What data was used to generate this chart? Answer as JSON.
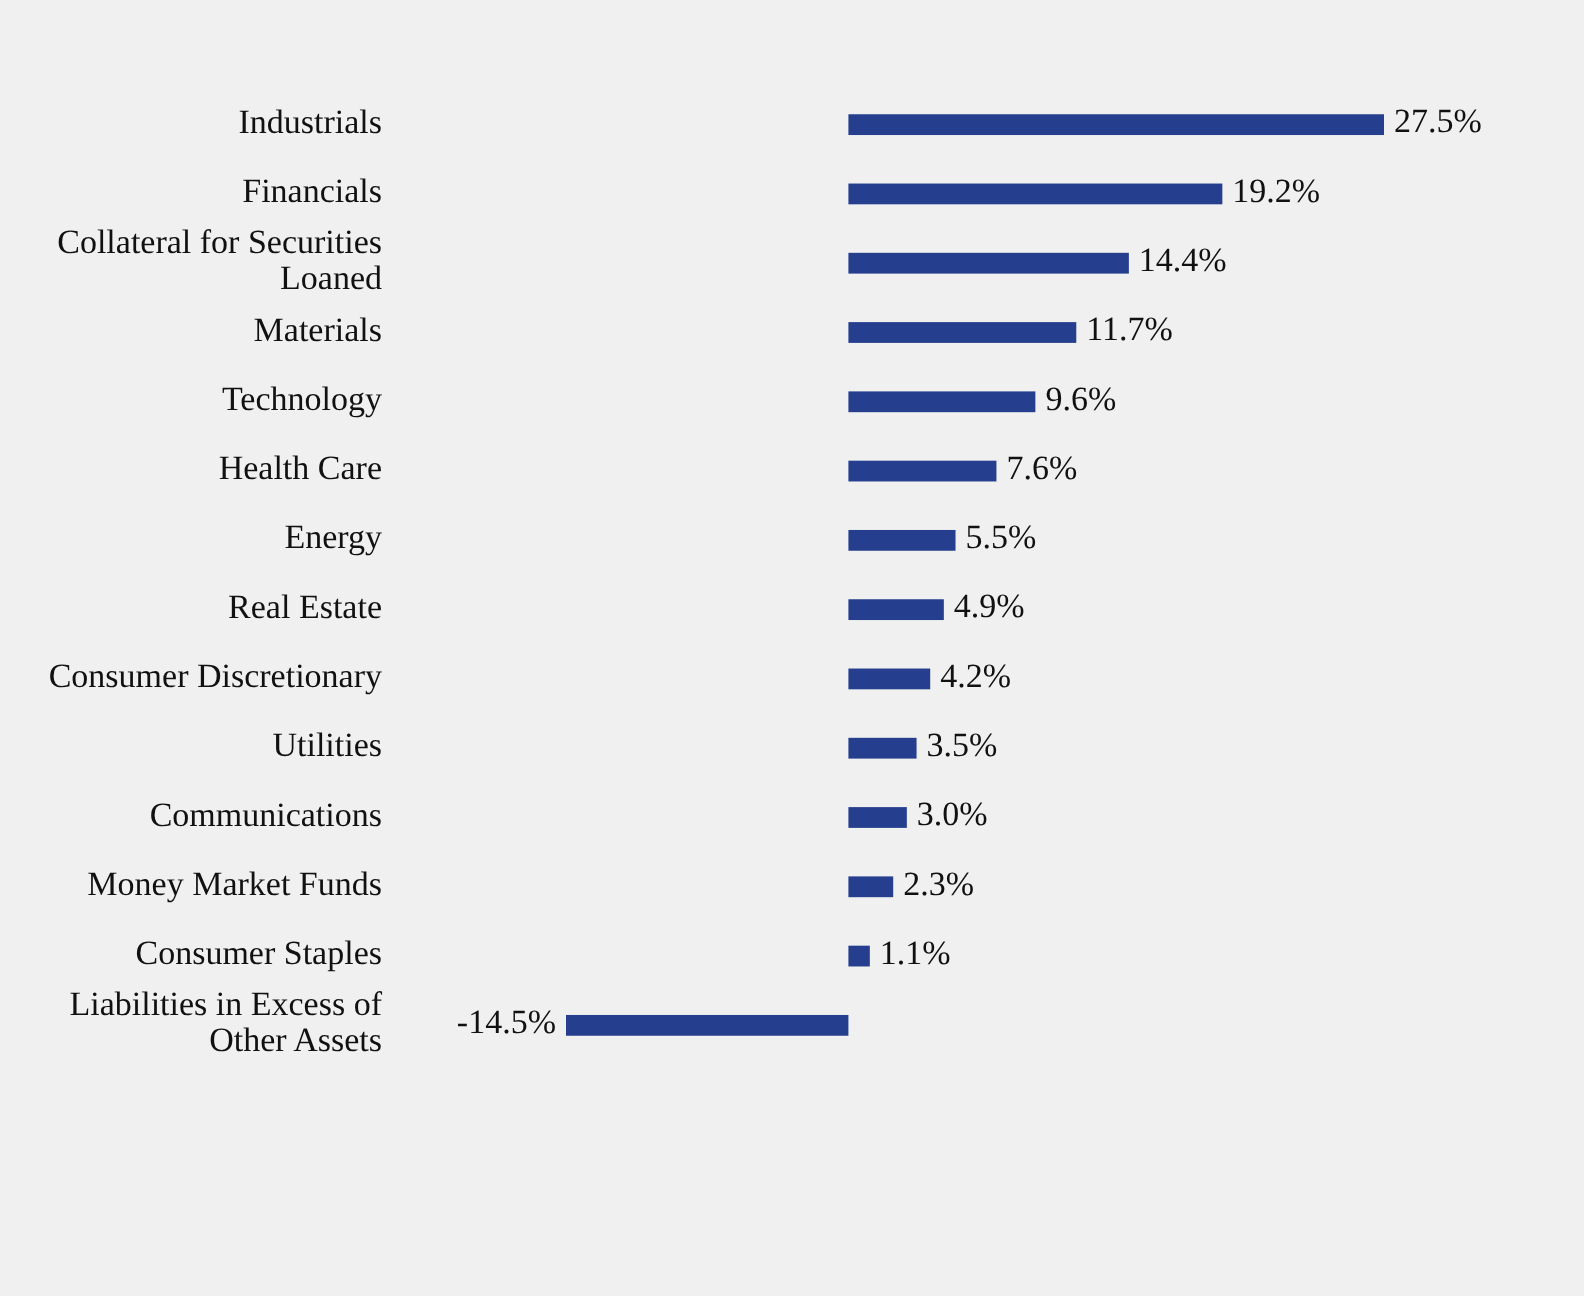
{
  "chart_data": {
    "type": "bar",
    "orientation": "horizontal",
    "categories": [
      "Industrials",
      "Financials",
      "Collateral for Securities Loaned",
      "Materials",
      "Technology",
      "Health Care",
      "Energy",
      "Real Estate",
      "Consumer Discretionary",
      "Utilities",
      "Communications",
      "Money Market Funds",
      "Consumer Staples",
      "Liabilities in Excess of Other Assets"
    ],
    "values": [
      27.5,
      19.2,
      14.4,
      11.7,
      9.6,
      7.6,
      5.5,
      4.9,
      4.2,
      3.5,
      3.0,
      2.3,
      1.1,
      -14.5
    ],
    "value_labels": [
      "27.5%",
      "19.2%",
      "14.4%",
      "11.7%",
      "9.6%",
      "7.6%",
      "5.5%",
      "4.9%",
      "4.2%",
      "3.5%",
      "3.0%",
      "2.3%",
      "1.1%",
      "-14.5%"
    ],
    "color": "#253f8e"
  }
}
